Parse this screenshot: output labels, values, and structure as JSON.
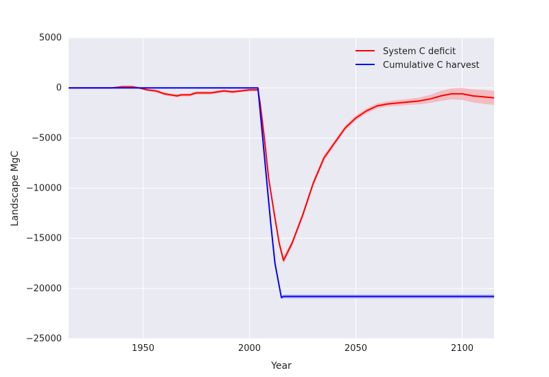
{
  "chart_data": {
    "type": "line",
    "title": "",
    "xlabel": "Year",
    "ylabel": "Landscape MgC",
    "xlim": [
      1915,
      2115
    ],
    "ylim": [
      -25000,
      5000
    ],
    "xticks": [
      1950,
      2000,
      2050,
      2100
    ],
    "yticks": [
      5000,
      0,
      -5000,
      -10000,
      -15000,
      -20000,
      -25000
    ],
    "xtick_labels": [
      "1950",
      "2000",
      "2050",
      "2100"
    ],
    "ytick_labels": [
      "5000",
      "0",
      "−5000",
      "−10000",
      "−15000",
      "−20000",
      "−25000"
    ],
    "grid": true,
    "legend_position": "top-right",
    "background": "#eaeaf2",
    "series": [
      {
        "name": "System C deficit",
        "color": "#ff0000",
        "band_color": "#f3b4b9",
        "x": [
          1915,
          1925,
          1935,
          1940,
          1945,
          1948,
          1952,
          1956,
          1960,
          1963,
          1966,
          1968,
          1972,
          1975,
          1978,
          1982,
          1985,
          1988,
          1992,
          1996,
          2000,
          2002,
          2004,
          2005,
          2007,
          2009,
          2012,
          2014,
          2016,
          2020,
          2025,
          2030,
          2035,
          2040,
          2045,
          2050,
          2055,
          2060,
          2065,
          2070,
          2075,
          2080,
          2085,
          2090,
          2095,
          2100,
          2105,
          2110,
          2115
        ],
        "y": [
          0,
          0,
          0,
          100,
          100,
          0,
          -200,
          -300,
          -600,
          -700,
          -800,
          -700,
          -700,
          -500,
          -500,
          -500,
          -400,
          -300,
          -400,
          -300,
          -200,
          -200,
          -200,
          -1500,
          -5000,
          -9000,
          -13000,
          -15500,
          -17200,
          -15500,
          -12700,
          -9500,
          -7000,
          -5500,
          -4000,
          -3000,
          -2300,
          -1800,
          -1600,
          -1500,
          -1400,
          -1300,
          -1100,
          -800,
          -600,
          -600,
          -800,
          -900,
          -1000
        ],
        "band": [
          0,
          0,
          0,
          150,
          150,
          100,
          100,
          150,
          150,
          150,
          150,
          150,
          150,
          150,
          150,
          150,
          150,
          150,
          150,
          150,
          150,
          150,
          150,
          200,
          250,
          300,
          300,
          350,
          350,
          300,
          300,
          300,
          300,
          250,
          250,
          250,
          250,
          250,
          250,
          300,
          300,
          350,
          400,
          500,
          550,
          600,
          650,
          700,
          700
        ]
      },
      {
        "name": "Cumulative C harvest",
        "color": "#0000ff",
        "band_color": "#b4b4ef",
        "x": [
          1915,
          2004,
          2006,
          2008,
          2010,
          2012,
          2015,
          2016,
          2115
        ],
        "y": [
          0,
          0,
          -4500,
          -9000,
          -13500,
          -17500,
          -20900,
          -20800,
          -20800
        ],
        "band": [
          0,
          0,
          0,
          0,
          100,
          150,
          200,
          200,
          200
        ]
      }
    ]
  }
}
